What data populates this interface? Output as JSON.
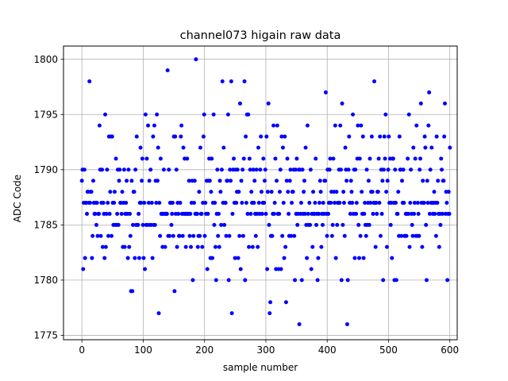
{
  "chart_data": {
    "type": "scatter",
    "title": "channel073 higain raw data",
    "xlabel": "sample number",
    "ylabel": "ADC Code",
    "xlim": [
      -30,
      612
    ],
    "ylim": [
      1774.6,
      1801.2
    ],
    "xticks": [
      0,
      100,
      200,
      300,
      400,
      500,
      600
    ],
    "yticks": [
      1775,
      1780,
      1785,
      1790,
      1795,
      1800
    ],
    "grid": true,
    "marker_color": "#0000ff",
    "n_points": 580,
    "values": [
      1789,
      1790,
      1781,
      1787,
      1790,
      1782,
      1787,
      1787,
      1786,
      1788,
      1788,
      1787,
      1798,
      1787,
      1788,
      1788,
      1782,
      1784,
      1789,
      1787,
      1786,
      1786,
      1787,
      1785,
      1787,
      1784,
      1786,
      1786,
      1794,
      1790,
      1784,
      1787,
      1790,
      1783,
      1787,
      1786,
      1782,
      1795,
      1783,
      1786,
      1790,
      1787,
      1784,
      1793,
      1786,
      1788,
      1793,
      1784,
      1793,
      1787,
      1785,
      1787,
      1788,
      1785,
      1791,
      1785,
      1786,
      1790,
      1785,
      1789,
      1790,
      1787,
      1787,
      1786,
      1788,
      1783,
      1787,
      1790,
      1783,
      1786,
      1787,
      1789,
      1786,
      1782,
      1790,
      1783,
      1786,
      1784,
      1779,
      1789,
      1779,
      1785,
      1788,
      1788,
      1782,
      1790,
      1785,
      1793,
      1785,
      1785,
      1786,
      1782,
      1787,
      1792,
      1787,
      1789,
      1791,
      1785,
      1782,
      1787,
      1781,
      1795,
      1785,
      1791,
      1785,
      1794,
      1787,
      1789,
      1785,
      1790,
      1785,
      1787,
      1782,
      1793,
      1785,
      1794,
      1785,
      1789,
      1787,
      1795,
      1789,
      1792,
      1777,
      1787,
      1784,
      1791,
      1786,
      1786,
      1783,
      1786,
      1790,
      1786,
      1783,
      1786,
      1786,
      1786,
      1799,
      1784,
      1790,
      1784,
      1787,
      1787,
      1785,
      1786,
      1787,
      1784,
      1793,
      1779,
      1793,
      1786,
      1790,
      1783,
      1787,
      1786,
      1784,
      1784,
      1787,
      1793,
      1794,
      1786,
      1784,
      1792,
      1786,
      1791,
      1786,
      1783,
      1786,
      1791,
      1786,
      1786,
      1789,
      1784,
      1786,
      1783,
      1787,
      1789,
      1780,
      1784,
      1787,
      1789,
      1786,
      1800,
      1786,
      1786,
      1783,
      1784,
      1788,
      1784,
      1792,
      1786,
      1786,
      1783,
      1787,
      1793,
      1795,
      1784,
      1787,
      1786,
      1789,
      1781,
      1786,
      1789,
      1791,
      1789,
      1782,
      1788,
      1791,
      1782,
      1787,
      1795,
      1785,
      1787,
      1783,
      1780,
      1786,
      1790,
      1784,
      1786,
      1783,
      1789,
      1788,
      1785,
      1790,
      1798,
      1787,
      1792,
      1785,
      1787,
      1787,
      1784,
      1789,
      1789,
      1795,
      1780,
      1784,
      1790,
      1789,
      1798,
      1777,
      1786,
      1790,
      1791,
      1787,
      1782,
      1790,
      1787,
      1788,
      1790,
      1782,
      1788,
      1784,
      1796,
      1781,
      1789,
      1787,
      1790,
      1784,
      1791,
      1798,
      1780,
      1793,
      1787,
      1795,
      1786,
      1795,
      1783,
      1791,
      1790,
      1786,
      1788,
      1787,
      1783,
      1790,
      1787,
      1789,
      1786,
      1784,
      1790,
      1786,
      1783,
      1792,
      1787,
      1786,
      1790,
      1793,
      1788,
      1786,
      1787,
      1791,
      1787,
      1789,
      1790,
      1786,
      1793,
      1781,
      1788,
      1796,
      1785,
      1777,
      1778,
      1784,
      1788,
      1784,
      1786,
      1794,
      1786,
      1787,
      1791,
      1781,
      1789,
      1794,
      1786,
      1781,
      1786,
      1788,
      1790,
      1781,
      1793,
      1784,
      1792,
      1787,
      1782,
      1793,
      1783,
      1778,
      1789,
      1791,
      1788,
      1786,
      1784,
      1789,
      1790,
      1784,
      1787,
      1788,
      1788,
      1790,
      1784,
      1780,
      1790,
      1786,
      1791,
      1785,
      1786,
      1790,
      1776,
      1790,
      1786,
      1787,
      1780,
      1790,
      1786,
      1788,
      1789,
      1786,
      1792,
      1785,
      1782,
      1794,
      1786,
      1785,
      1787,
      1785,
      1790,
      1781,
      1786,
      1783,
      1788,
      1786,
      1786,
      1787,
      1791,
      1785,
      1786,
      1780,
      1782,
      1786,
      1787,
      1789,
      1788,
      1783,
      1786,
      1785,
      1787,
      1786,
      1789,
      1789,
      1797,
      1786,
      1784,
      1790,
      1786,
      1787,
      1790,
      1791,
      1787,
      1788,
      1784,
      1785,
      1791,
      1788,
      1787,
      1794,
      1782,
      1788,
      1785,
      1787,
      1787,
      1790,
      1787,
      1794,
      1790,
      1780,
      1796,
      1785,
      1788,
      1787,
      1784,
      1792,
      1790,
      1789,
      1776,
      1780,
      1790,
      1793,
      1787,
      1786,
      1789,
      1788,
      1787,
      1795,
      1786,
      1790,
      1782,
      1790,
      1786,
      1787,
      1791,
      1794,
      1785,
      1782,
      1791,
      1784,
      1794,
      1788,
      1786,
      1793,
      1782,
      1786,
      1787,
      1785,
      1784,
      1790,
      1785,
      1787,
      1789,
      1785,
      1791,
      1787,
      1788,
      1793,
      1788,
      1786,
      1787,
      1798,
      1787,
      1783,
      1787,
      1786,
      1788,
      1788,
      1791,
      1787,
      1793,
      1784,
      1790,
      1786,
      1789,
      1780,
      1790,
      1793,
      1791,
      1795,
      1788,
      1783,
      1789,
      1790,
      1793,
      1787,
      1791,
      1785,
      1787,
      1782,
      1791,
      1791,
      1787,
      1780,
      1790,
      1787,
      1780,
      1786,
      1786,
      1788,
      1784,
      1793,
      1790,
      1790,
      1784,
      1789,
      1787,
      1790,
      1787,
      1784,
      1784,
      1786,
      1784,
      1786,
      1791,
      1786,
      1795,
      1783,
      1787,
      1790,
      1786,
      1785,
      1784,
      1792,
      1786,
      1787,
      1791,
      1784,
      1794,
      1784,
      1787,
      1786,
      1784,
      1790,
      1791,
      1796,
      1787,
      1783,
      1789,
      1787,
      1787,
      1793,
      1792,
      1785,
      1780,
      1789,
      1787,
      1794,
      1797,
      1786,
      1790,
      1787,
      1792,
      1787,
      1786,
      1787,
      1788,
      1786,
      1787,
      1784,
      1793,
      1787,
      1789,
      1786,
      1783,
      1786,
      1785,
      1791,
      1790,
      1786,
      1789,
      1789,
      1793,
      1796,
      1786,
      1788,
      1787,
      1780,
      1786,
      1788,
      1786,
      1792
    ]
  }
}
